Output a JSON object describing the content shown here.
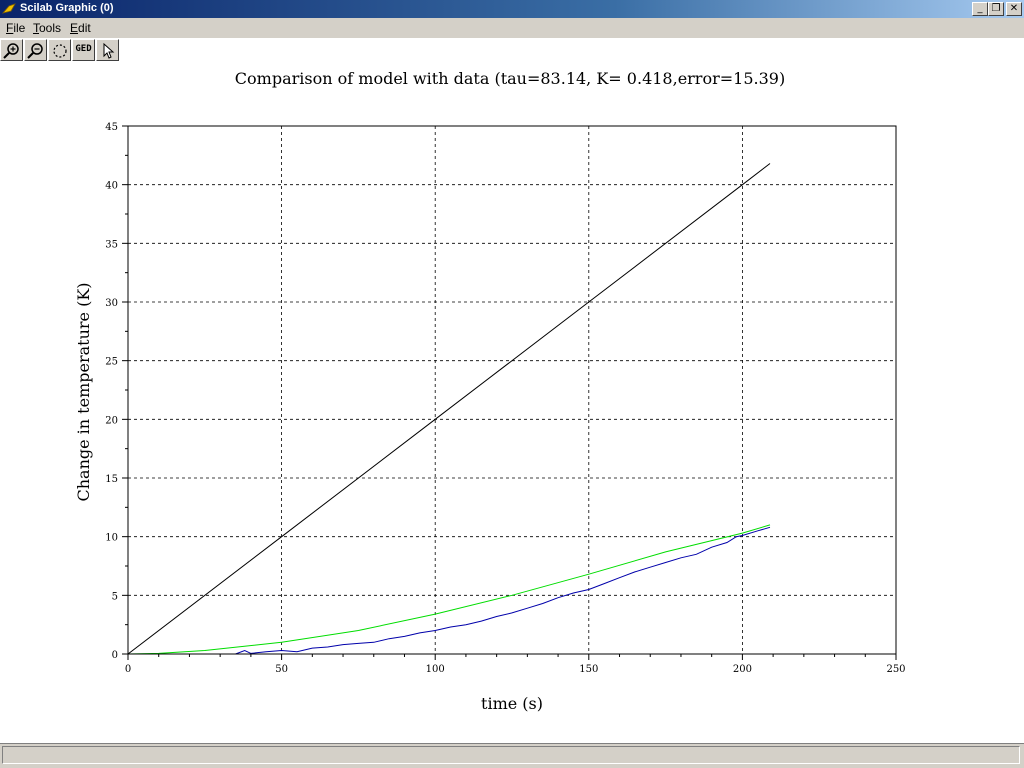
{
  "window": {
    "title": "Scilab Graphic (0)",
    "minimize_icon": "minimize-icon",
    "restore_icon": "restore-icon",
    "close_icon": "close-icon"
  },
  "menu": {
    "file": {
      "accel": "F",
      "rest": "ile"
    },
    "tools": {
      "accel": "T",
      "rest": "ools"
    },
    "edit": {
      "accel": "E",
      "rest": "dit"
    }
  },
  "toolbar": {
    "zoom_in_icon": "zoom-in-icon",
    "zoom_out_icon": "zoom-out-icon",
    "rotate_icon": "rotate-icon",
    "ged_label": "GED",
    "pointer_icon": "pointer-icon"
  },
  "chart_data": {
    "type": "line",
    "title": "Comparison of model with data (tau=83.14, K= 0.418,error=15.39)",
    "xlabel": "time (s)",
    "ylabel": "Change in temperature (K)",
    "xlim": [
      0,
      250
    ],
    "ylim": [
      0,
      45
    ],
    "xticks": [
      0,
      50,
      100,
      150,
      200,
      250
    ],
    "yticks": [
      0,
      5,
      10,
      15,
      20,
      25,
      30,
      35,
      40,
      45
    ],
    "grid": true,
    "legend": "none",
    "series": [
      {
        "color": "#000000",
        "x": [
          0,
          50,
          100,
          150,
          200,
          209
        ],
        "y": [
          0,
          10,
          20,
          30,
          40,
          41.8
        ]
      },
      {
        "color": "#00dd00",
        "x": [
          0,
          10,
          25,
          50,
          75,
          100,
          125,
          150,
          175,
          200,
          209
        ],
        "y": [
          0,
          0.05,
          0.3,
          1.0,
          2.0,
          3.4,
          5.0,
          6.8,
          8.7,
          10.3,
          11.0
        ]
      },
      {
        "color": "#0000aa",
        "x": [
          0,
          35,
          38,
          40,
          45,
          50,
          55,
          60,
          65,
          70,
          75,
          80,
          85,
          90,
          95,
          100,
          105,
          110,
          115,
          120,
          125,
          130,
          135,
          140,
          145,
          150,
          155,
          160,
          165,
          170,
          175,
          180,
          185,
          190,
          195,
          198,
          200,
          205,
          209
        ],
        "y": [
          0,
          0,
          0.3,
          0.05,
          0.2,
          0.3,
          0.2,
          0.5,
          0.6,
          0.8,
          0.9,
          1.0,
          1.3,
          1.5,
          1.8,
          2.0,
          2.3,
          2.5,
          2.8,
          3.2,
          3.5,
          3.9,
          4.3,
          4.8,
          5.2,
          5.5,
          6.0,
          6.5,
          7.0,
          7.4,
          7.8,
          8.2,
          8.5,
          9.1,
          9.5,
          10.0,
          10.1,
          10.5,
          10.8
        ]
      }
    ]
  }
}
